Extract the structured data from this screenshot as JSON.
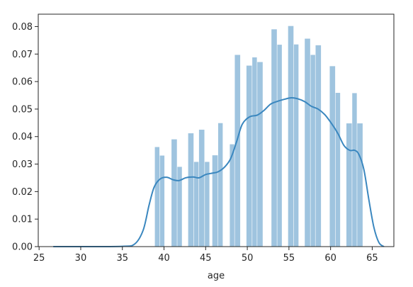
{
  "chart_data": {
    "type": "bar",
    "subtype": "histogram-with-kde",
    "title": "",
    "xlabel": "age",
    "ylabel": "",
    "xlim": [
      24.9,
      67.6
    ],
    "ylim": [
      0,
      0.0845
    ],
    "xticks": [
      25,
      30,
      35,
      40,
      45,
      50,
      55,
      60,
      65
    ],
    "xtick_labels": [
      "25",
      "30",
      "35",
      "40",
      "45",
      "50",
      "55",
      "60",
      "65"
    ],
    "yticks": [
      0,
      0.01,
      0.02,
      0.03,
      0.04,
      0.05,
      0.06,
      0.07,
      0.08
    ],
    "ytick_labels": [
      "0.00",
      "0.01",
      "0.02",
      "0.03",
      "0.04",
      "0.05",
      "0.06",
      "0.07",
      "0.08"
    ],
    "grid": false,
    "bar_color": "#9fc4df",
    "line_color": "#3a87bf",
    "bins": [
      {
        "x0": 38.9,
        "x1": 39.5,
        "density": 0.0362
      },
      {
        "x0": 39.5,
        "x1": 40.1,
        "density": 0.0331
      },
      {
        "x0": 40.9,
        "x1": 41.6,
        "density": 0.039
      },
      {
        "x0": 41.6,
        "x1": 42.2,
        "density": 0.029
      },
      {
        "x0": 42.9,
        "x1": 43.6,
        "density": 0.0412
      },
      {
        "x0": 43.6,
        "x1": 44.2,
        "density": 0.0308
      },
      {
        "x0": 44.2,
        "x1": 44.9,
        "density": 0.0425
      },
      {
        "x0": 44.9,
        "x1": 45.5,
        "density": 0.0308
      },
      {
        "x0": 45.8,
        "x1": 46.5,
        "density": 0.0332
      },
      {
        "x0": 46.5,
        "x1": 47.1,
        "density": 0.0449
      },
      {
        "x0": 47.9,
        "x1": 48.5,
        "density": 0.0372
      },
      {
        "x0": 48.5,
        "x1": 49.2,
        "density": 0.0697
      },
      {
        "x0": 49.9,
        "x1": 50.6,
        "density": 0.0658
      },
      {
        "x0": 50.6,
        "x1": 51.2,
        "density": 0.0688
      },
      {
        "x0": 51.2,
        "x1": 51.9,
        "density": 0.0671
      },
      {
        "x0": 52.9,
        "x1": 53.6,
        "density": 0.079
      },
      {
        "x0": 53.6,
        "x1": 54.2,
        "density": 0.0734
      },
      {
        "x0": 54.9,
        "x1": 55.6,
        "density": 0.0802
      },
      {
        "x0": 55.6,
        "x1": 56.2,
        "density": 0.0735
      },
      {
        "x0": 56.9,
        "x1": 57.6,
        "density": 0.0756
      },
      {
        "x0": 57.6,
        "x1": 58.2,
        "density": 0.0697
      },
      {
        "x0": 58.2,
        "x1": 58.9,
        "density": 0.0732
      },
      {
        "x0": 59.9,
        "x1": 60.6,
        "density": 0.0656
      },
      {
        "x0": 60.6,
        "x1": 61.2,
        "density": 0.0559
      },
      {
        "x0": 61.9,
        "x1": 62.6,
        "density": 0.0448
      },
      {
        "x0": 62.6,
        "x1": 63.2,
        "density": 0.0558
      },
      {
        "x0": 63.2,
        "x1": 63.9,
        "density": 0.0448
      }
    ],
    "kde": {
      "x": [
        26.7,
        30,
        35,
        36.5,
        37.5,
        38.2,
        38.8,
        39.5,
        40.3,
        41.1,
        41.8,
        42.6,
        43.5,
        44.2,
        45.0,
        45.8,
        46.5,
        47.3,
        48.0,
        48.7,
        49.4,
        50.3,
        51.2,
        52.0,
        52.8,
        53.6,
        54.5,
        55.3,
        56.1,
        56.9,
        57.7,
        58.5,
        59.3,
        60.1,
        60.9,
        61.6,
        62.3,
        62.9,
        63.4,
        64.0,
        64.6,
        65.2,
        65.8,
        66.4
      ],
      "y": [
        0.0,
        0.0,
        0.0001,
        0.001,
        0.006,
        0.015,
        0.0215,
        0.0245,
        0.0252,
        0.0243,
        0.024,
        0.025,
        0.0253,
        0.025,
        0.0262,
        0.0267,
        0.0272,
        0.029,
        0.032,
        0.038,
        0.0445,
        0.0472,
        0.0478,
        0.0495,
        0.0518,
        0.0528,
        0.0536,
        0.0541,
        0.0537,
        0.0527,
        0.051,
        0.05,
        0.048,
        0.0448,
        0.041,
        0.0368,
        0.035,
        0.035,
        0.0335,
        0.028,
        0.017,
        0.007,
        0.0015,
        0.0
      ]
    }
  }
}
